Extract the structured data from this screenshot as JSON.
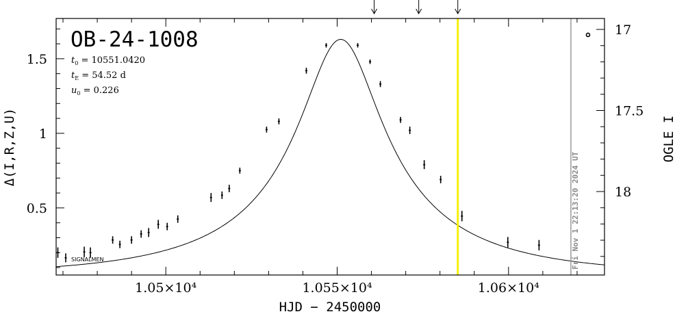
{
  "chart_data": {
    "type": "scatter",
    "title": "OB-24-1008",
    "xlabel": "HJD − 2450000",
    "ylabel": "Δ(I,R,Z,U)",
    "ylabel_right": "OGLE I",
    "xlim": [
      10468,
      10628
    ],
    "ylim": [
      0.05,
      1.77
    ],
    "x_ticks": [
      {
        "value": 10500,
        "label": "1.05×10⁴"
      },
      {
        "value": 10550,
        "label": "1.055×10⁴"
      },
      {
        "value": 10600,
        "label": "1.06×10⁴"
      }
    ],
    "y_ticks": [
      {
        "value": 0.5,
        "label": "0.5"
      },
      {
        "value": 1,
        "label": "1"
      },
      {
        "value": 1.5,
        "label": "1.5"
      }
    ],
    "y_right_ticks": [
      {
        "value": 17,
        "label": "17"
      },
      {
        "value": 17.5,
        "label": "17.5"
      },
      {
        "value": 18,
        "label": "18"
      }
    ],
    "params": [
      {
        "sym": "t",
        "sub": "0",
        "text": " = 10551.0420"
      },
      {
        "sym": "t",
        "sub": "E",
        "text": " = 54.52 d"
      },
      {
        "sym": "u",
        "sub": "0",
        "text": " = 0.226"
      }
    ],
    "model": {
      "t0": 10551.042,
      "tE": 54.52,
      "u0": 0.226
    },
    "points": [
      {
        "x": 10468.5,
        "y": 0.2,
        "err": 0.035
      },
      {
        "x": 10470.8,
        "y": 0.165,
        "err": 0.03
      },
      {
        "x": 10476.2,
        "y": 0.205,
        "err": 0.035
      },
      {
        "x": 10478.0,
        "y": 0.2,
        "err": 0.035
      },
      {
        "x": 10484.5,
        "y": 0.285,
        "err": 0.025
      },
      {
        "x": 10486.6,
        "y": 0.255,
        "err": 0.025
      },
      {
        "x": 10490.0,
        "y": 0.285,
        "err": 0.025
      },
      {
        "x": 10492.8,
        "y": 0.325,
        "err": 0.025
      },
      {
        "x": 10495.0,
        "y": 0.335,
        "err": 0.03
      },
      {
        "x": 10497.8,
        "y": 0.39,
        "err": 0.03
      },
      {
        "x": 10500.4,
        "y": 0.375,
        "err": 0.025
      },
      {
        "x": 10503.5,
        "y": 0.425,
        "err": 0.025
      },
      {
        "x": 10513.2,
        "y": 0.57,
        "err": 0.03
      },
      {
        "x": 10516.4,
        "y": 0.585,
        "err": 0.025
      },
      {
        "x": 10518.5,
        "y": 0.63,
        "err": 0.025
      },
      {
        "x": 10521.6,
        "y": 0.75,
        "err": 0.02
      },
      {
        "x": 10529.4,
        "y": 1.025,
        "err": 0.02
      },
      {
        "x": 10533.0,
        "y": 1.08,
        "err": 0.02
      },
      {
        "x": 10541.0,
        "y": 1.42,
        "err": 0.02
      },
      {
        "x": 10546.8,
        "y": 1.59,
        "err": 0.015
      },
      {
        "x": 10556.0,
        "y": 1.59,
        "err": 0.015
      },
      {
        "x": 10559.6,
        "y": 1.48,
        "err": 0.015
      },
      {
        "x": 10562.6,
        "y": 1.33,
        "err": 0.02
      },
      {
        "x": 10568.5,
        "y": 1.09,
        "err": 0.02
      },
      {
        "x": 10571.2,
        "y": 1.02,
        "err": 0.025
      },
      {
        "x": 10575.4,
        "y": 0.79,
        "err": 0.03
      },
      {
        "x": 10580.2,
        "y": 0.69,
        "err": 0.025
      },
      {
        "x": 10586.4,
        "y": 0.445,
        "err": 0.035
      },
      {
        "x": 10599.8,
        "y": 0.27,
        "err": 0.035
      },
      {
        "x": 10608.9,
        "y": 0.25,
        "err": 0.035
      }
    ],
    "open_point": {
      "x": 10623.2,
      "y": 1.66
    },
    "arrows_x": [
      10560.8,
      10573.8,
      10585.2
    ],
    "highlight_x": 10585.2,
    "now_x": 10618.2,
    "now_label": "Fri Nov  1 22:13:20 2024 UT",
    "footnote": "SIGNALMEN",
    "colors": {
      "highlight": "#f5f00a",
      "now_line": "#999999",
      "ink": "#000000"
    }
  }
}
